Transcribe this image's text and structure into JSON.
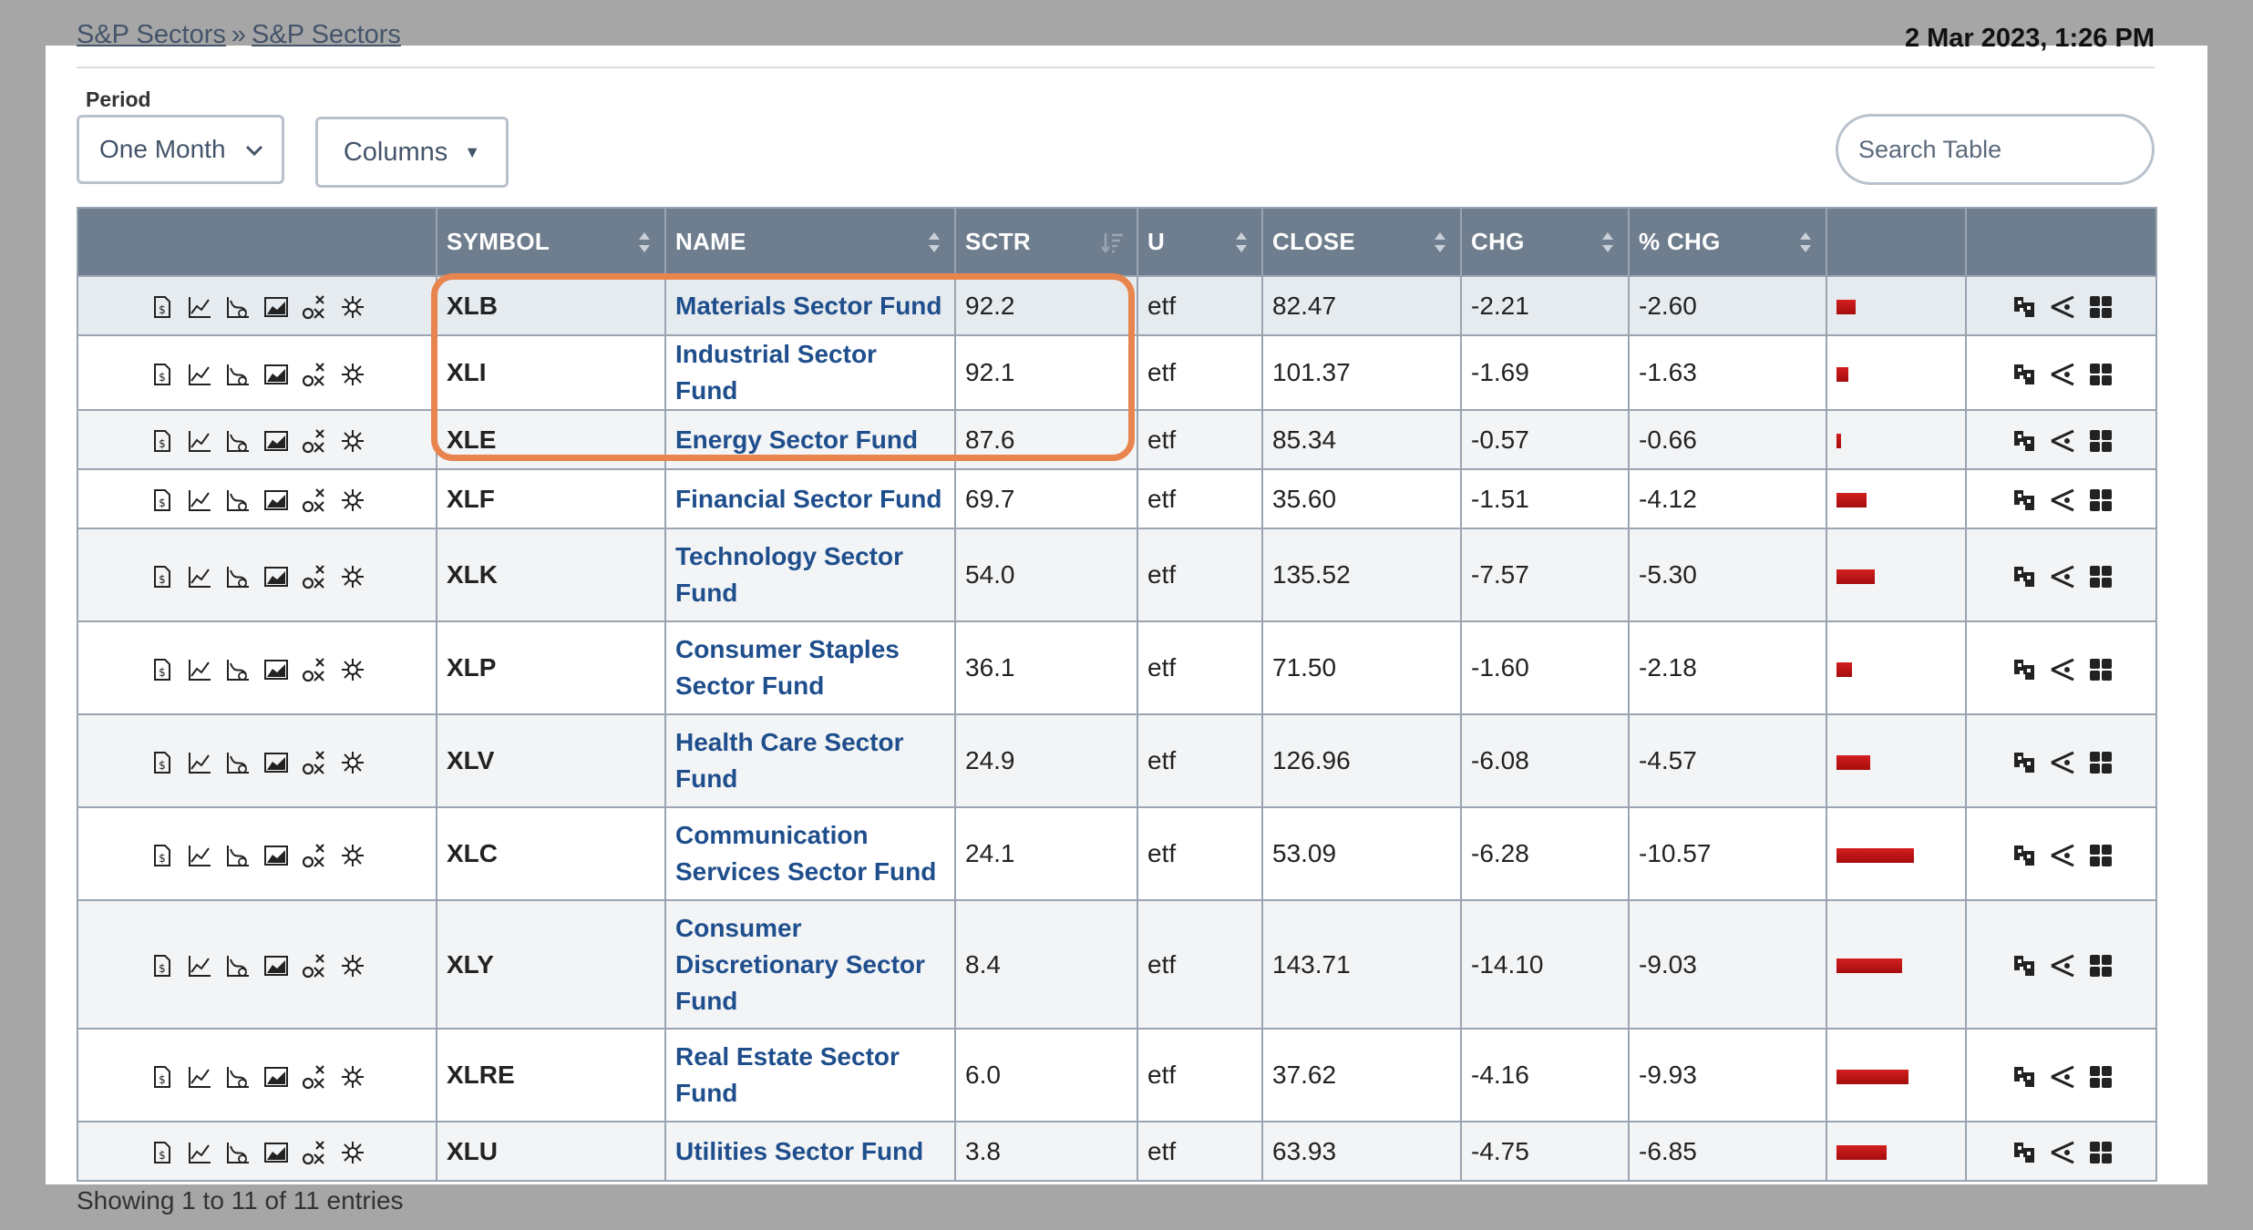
{
  "breadcrumb": {
    "parent": "S&P Sectors",
    "separator": "»",
    "current": "S&P Sectors"
  },
  "timestamp": "2 Mar 2023, 1:26 PM",
  "controls": {
    "period_label": "Period",
    "period_value": "One Month",
    "columns_label": "Columns",
    "search_placeholder": "Search Table"
  },
  "table": {
    "columns": [
      "SYMBOL",
      "NAME",
      "SCTR",
      "U",
      "CLOSE",
      "CHG",
      "% CHG"
    ],
    "rows": [
      {
        "symbol": "XLB",
        "name": "Materials Sector Fund",
        "sctr": "92.2",
        "u": "etf",
        "close": "82.47",
        "chg": "-2.21",
        "pct": "-2.60"
      },
      {
        "symbol": "XLI",
        "name": "Industrial Sector Fund",
        "sctr": "92.1",
        "u": "etf",
        "close": "101.37",
        "chg": "-1.69",
        "pct": "-1.63"
      },
      {
        "symbol": "XLE",
        "name": "Energy Sector Fund",
        "sctr": "87.6",
        "u": "etf",
        "close": "85.34",
        "chg": "-0.57",
        "pct": "-0.66"
      },
      {
        "symbol": "XLF",
        "name": "Financial Sector Fund",
        "sctr": "69.7",
        "u": "etf",
        "close": "35.60",
        "chg": "-1.51",
        "pct": "-4.12"
      },
      {
        "symbol": "XLK",
        "name": "Technology Sector Fund",
        "sctr": "54.0",
        "u": "etf",
        "close": "135.52",
        "chg": "-7.57",
        "pct": "-5.30"
      },
      {
        "symbol": "XLP",
        "name": "Consumer Staples Sector Fund",
        "sctr": "36.1",
        "u": "etf",
        "close": "71.50",
        "chg": "-1.60",
        "pct": "-2.18"
      },
      {
        "symbol": "XLV",
        "name": "Health Care Sector Fund",
        "sctr": "24.9",
        "u": "etf",
        "close": "126.96",
        "chg": "-6.08",
        "pct": "-4.57"
      },
      {
        "symbol": "XLC",
        "name": "Communication Services Sector Fund",
        "sctr": "24.1",
        "u": "etf",
        "close": "53.09",
        "chg": "-6.28",
        "pct": "-10.57"
      },
      {
        "symbol": "XLY",
        "name": "Consumer Discretionary Sector Fund",
        "sctr": "8.4",
        "u": "etf",
        "close": "143.71",
        "chg": "-14.10",
        "pct": "-9.03"
      },
      {
        "symbol": "XLRE",
        "name": "Real Estate Sector Fund",
        "sctr": "6.0",
        "u": "etf",
        "close": "37.62",
        "chg": "-4.16",
        "pct": "-9.93"
      },
      {
        "symbol": "XLU",
        "name": "Utilities Sector Fund",
        "sctr": "3.8",
        "u": "etf",
        "close": "63.93",
        "chg": "-4.75",
        "pct": "-6.85"
      }
    ]
  },
  "row_tool_icons": [
    "symbol-summary-icon",
    "sharpchart-icon",
    "gallery-view-icon",
    "acp-chart-icon",
    "point-and-figure-icon",
    "seasonality-icon"
  ],
  "row_action_icons": [
    "carl-chart-icon",
    "perf-chart-icon",
    "add-to-list-icon"
  ],
  "footer": "Showing 1 to 11 of 11 entries",
  "colors": {
    "header_bg": "#6f7e8e",
    "link": "#1f4e8c",
    "bar": "#c41818",
    "highlight": "#e8854e"
  }
}
